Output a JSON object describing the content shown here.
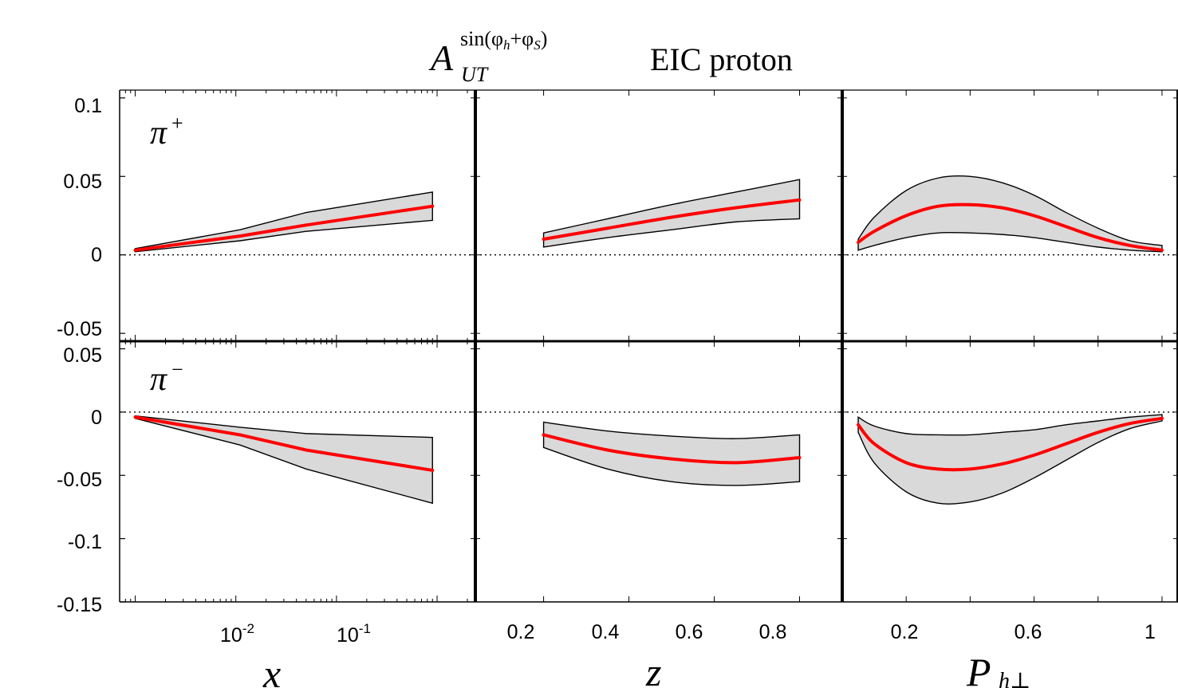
{
  "title": {
    "symbol": "A",
    "superscript": "sin(φ",
    "superscript_h": "h",
    "superscript_plus": "+φ",
    "superscript_s": "S",
    "superscript_close": ")",
    "subscript": "UT",
    "text": "EIC proton"
  },
  "axis_labels": {
    "x": "x",
    "z": "z",
    "P": "P",
    "P_sub": "h⊥"
  },
  "hadron_labels": {
    "pi_plus": "π",
    "pi_plus_sup": "+",
    "pi_minus": "π",
    "pi_minus_sup": "−"
  },
  "colors": {
    "band_fill": "#d9d9d9",
    "band_edge": "#000000",
    "central_line": "#ff0000",
    "zero_line": "#000000"
  },
  "y_tick_labels": {
    "top": [
      "0.1",
      "0.05",
      "0",
      "-0.05"
    ],
    "bottom": [
      "0.05",
      "0",
      "-0.05",
      "-0.1",
      "-0.15"
    ]
  },
  "x_tick_labels": {
    "x_base": [
      "10",
      "10"
    ],
    "x_exp": [
      "-2",
      "-1"
    ],
    "z": [
      "0.2",
      "0.4",
      "0.6",
      "0.8"
    ],
    "pt": [
      "0.2",
      "0.6",
      "1"
    ]
  },
  "chart_data": [
    {
      "type": "line",
      "panel": "pi_plus_x",
      "xlabel": "x",
      "xscale": "log",
      "xlim": [
        0.0007,
        2.4
      ],
      "ylim": [
        -0.055,
        0.105
      ],
      "x": [
        0.001,
        0.011,
        0.05,
        0.9
      ],
      "series": [
        {
          "values": [
            0.003,
            0.012,
            0.019,
            0.031
          ]
        },
        {
          "values": [
            0.004,
            0.016,
            0.027,
            0.04
          ]
        },
        {
          "values": [
            0.002,
            0.009,
            0.015,
            0.022
          ]
        }
      ]
    },
    {
      "type": "line",
      "panel": "pi_plus_z",
      "xlabel": "z",
      "xlim": [
        0.04,
        0.9
      ],
      "ylim": [
        -0.055,
        0.105
      ],
      "x": [
        0.2,
        0.35,
        0.5,
        0.65,
        0.8
      ],
      "series": [
        {
          "values": [
            0.01,
            0.017,
            0.024,
            0.03,
            0.035
          ]
        },
        {
          "values": [
            0.014,
            0.023,
            0.032,
            0.04,
            0.048
          ]
        },
        {
          "values": [
            0.005,
            0.011,
            0.016,
            0.021,
            0.023
          ]
        }
      ]
    },
    {
      "type": "line",
      "panel": "pi_plus_pt",
      "xlabel": "P_h⊥",
      "xlim": [
        0.0,
        1.05
      ],
      "ylim": [
        -0.055,
        0.105
      ],
      "x": [
        0.05,
        0.1,
        0.2,
        0.3,
        0.4,
        0.5,
        0.6,
        0.7,
        0.8,
        0.9,
        1.0
      ],
      "series": [
        {
          "values": [
            0.008,
            0.015,
            0.025,
            0.031,
            0.032,
            0.03,
            0.025,
            0.018,
            0.011,
            0.006,
            0.003
          ]
        },
        {
          "values": [
            0.01,
            0.024,
            0.041,
            0.049,
            0.05,
            0.046,
            0.038,
            0.027,
            0.017,
            0.009,
            0.006
          ]
        },
        {
          "values": [
            0.003,
            0.006,
            0.011,
            0.014,
            0.014,
            0.013,
            0.011,
            0.008,
            0.005,
            0.003,
            0.002
          ]
        }
      ]
    },
    {
      "type": "line",
      "panel": "pi_minus_x",
      "xlabel": "x",
      "xscale": "log",
      "xlim": [
        0.0007,
        2.4
      ],
      "ylim": [
        -0.15,
        0.056
      ],
      "x": [
        0.001,
        0.011,
        0.05,
        0.9
      ],
      "series": [
        {
          "values": [
            -0.004,
            -0.018,
            -0.03,
            -0.046
          ]
        },
        {
          "values": [
            -0.003,
            -0.012,
            -0.017,
            -0.02
          ]
        },
        {
          "values": [
            -0.005,
            -0.026,
            -0.045,
            -0.072
          ]
        }
      ]
    },
    {
      "type": "line",
      "panel": "pi_minus_z",
      "xlabel": "z",
      "xlim": [
        0.04,
        0.9
      ],
      "ylim": [
        -0.15,
        0.056
      ],
      "x": [
        0.2,
        0.35,
        0.5,
        0.65,
        0.8
      ],
      "series": [
        {
          "values": [
            -0.018,
            -0.03,
            -0.037,
            -0.04,
            -0.036
          ]
        },
        {
          "values": [
            -0.008,
            -0.015,
            -0.019,
            -0.021,
            -0.018
          ]
        },
        {
          "values": [
            -0.028,
            -0.045,
            -0.055,
            -0.058,
            -0.055
          ]
        }
      ]
    },
    {
      "type": "line",
      "panel": "pi_minus_pt",
      "xlabel": "P_h⊥",
      "xlim": [
        0.0,
        1.05
      ],
      "ylim": [
        -0.15,
        0.056
      ],
      "x": [
        0.05,
        0.1,
        0.2,
        0.3,
        0.4,
        0.5,
        0.6,
        0.7,
        0.8,
        0.9,
        1.0
      ],
      "series": [
        {
          "values": [
            -0.01,
            -0.025,
            -0.04,
            -0.045,
            -0.045,
            -0.041,
            -0.034,
            -0.025,
            -0.016,
            -0.009,
            -0.005
          ]
        },
        {
          "values": [
            -0.004,
            -0.011,
            -0.017,
            -0.018,
            -0.018,
            -0.016,
            -0.014,
            -0.01,
            -0.007,
            -0.004,
            -0.002
          ]
        },
        {
          "values": [
            -0.016,
            -0.04,
            -0.063,
            -0.072,
            -0.071,
            -0.064,
            -0.052,
            -0.038,
            -0.024,
            -0.013,
            -0.007
          ]
        }
      ]
    }
  ]
}
